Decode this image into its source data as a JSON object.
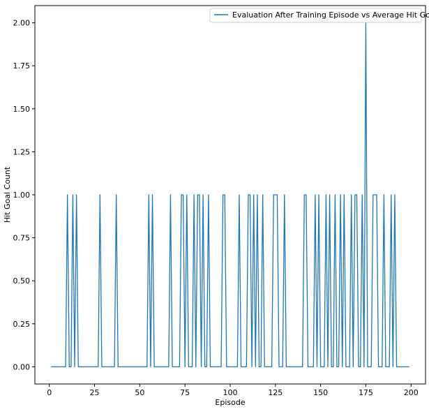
{
  "chart_data": {
    "type": "line",
    "xlabel": "Episode",
    "ylabel": "Hit Goal Count",
    "xlim": [
      -8,
      208
    ],
    "ylim": [
      -0.1,
      2.1
    ],
    "x_ticks": [
      0,
      25,
      50,
      75,
      100,
      125,
      150,
      175,
      200
    ],
    "x_tick_labels": [
      "0",
      "25",
      "50",
      "75",
      "100",
      "125",
      "150",
      "175",
      "200"
    ],
    "y_ticks": [
      0.0,
      0.25,
      0.5,
      0.75,
      1.0,
      1.25,
      1.5,
      1.75,
      2.0
    ],
    "y_tick_labels": [
      "0.00",
      "0.25",
      "0.50",
      "0.75",
      "1.00",
      "1.25",
      "1.50",
      "1.75",
      "2.00"
    ],
    "grid": false,
    "legend_position": "top-right",
    "series": [
      {
        "name": "Evaluation After Training Episode vs Average Hit Goal",
        "color": "#1f77b4",
        "x": [
          1,
          2,
          3,
          4,
          5,
          6,
          7,
          8,
          9,
          10,
          11,
          12,
          13,
          14,
          15,
          16,
          17,
          18,
          19,
          20,
          21,
          22,
          23,
          24,
          25,
          26,
          27,
          28,
          29,
          30,
          31,
          32,
          33,
          34,
          35,
          36,
          37,
          38,
          39,
          40,
          41,
          42,
          43,
          44,
          45,
          46,
          47,
          48,
          49,
          50,
          51,
          52,
          53,
          54,
          55,
          56,
          57,
          58,
          59,
          60,
          61,
          62,
          63,
          64,
          65,
          66,
          67,
          68,
          69,
          70,
          71,
          72,
          73,
          74,
          75,
          76,
          77,
          78,
          79,
          80,
          81,
          82,
          83,
          84,
          85,
          86,
          87,
          88,
          89,
          90,
          91,
          92,
          93,
          94,
          95,
          96,
          97,
          98,
          99,
          100,
          101,
          102,
          103,
          104,
          105,
          106,
          107,
          108,
          109,
          110,
          111,
          112,
          113,
          114,
          115,
          116,
          117,
          118,
          119,
          120,
          121,
          122,
          123,
          124,
          125,
          126,
          127,
          128,
          129,
          130,
          131,
          132,
          133,
          134,
          135,
          136,
          137,
          138,
          139,
          140,
          141,
          142,
          143,
          144,
          145,
          146,
          147,
          148,
          149,
          150,
          151,
          152,
          153,
          154,
          155,
          156,
          157,
          158,
          159,
          160,
          161,
          162,
          163,
          164,
          165,
          166,
          167,
          168,
          169,
          170,
          171,
          172,
          173,
          174,
          175,
          176,
          177,
          178,
          179,
          180,
          181,
          182,
          183,
          184,
          185,
          186,
          187,
          188,
          189,
          190,
          191,
          192,
          193,
          194,
          195,
          196,
          197,
          198,
          199
        ],
        "y": [
          0,
          0,
          0,
          0,
          0,
          0,
          0,
          0,
          0,
          1,
          0,
          0,
          1,
          0,
          1,
          0,
          0,
          0,
          0,
          0,
          0,
          0,
          0,
          0,
          0,
          0,
          0,
          1,
          0,
          0,
          0,
          0,
          0,
          0,
          0,
          0,
          1,
          0,
          0,
          0,
          0,
          0,
          0,
          0,
          0,
          0,
          0,
          0,
          0,
          0,
          0,
          0,
          0,
          0,
          1,
          0,
          1,
          0,
          0,
          0,
          0,
          0,
          0,
          0,
          0,
          0,
          1,
          0,
          0,
          0,
          0,
          0,
          1,
          1,
          0,
          1,
          0,
          0,
          0,
          1,
          0,
          1,
          1,
          0,
          1,
          0,
          0,
          1,
          0,
          0,
          0,
          0,
          0,
          0,
          0,
          1,
          1,
          0,
          0,
          0,
          0,
          0,
          0,
          0,
          1,
          0,
          0,
          0,
          0,
          1,
          1,
          0,
          1,
          0,
          1,
          0,
          0,
          1,
          0,
          0,
          0,
          0,
          0,
          1,
          1,
          1,
          0,
          0,
          0,
          1,
          0,
          0,
          0,
          0,
          0,
          0,
          0,
          0,
          0,
          0,
          1,
          1,
          0,
          0,
          0,
          0,
          1,
          0,
          1,
          0,
          0,
          0,
          1,
          0,
          1,
          0,
          0,
          1,
          0,
          0,
          1,
          0,
          1,
          0,
          0,
          0,
          1,
          0,
          1,
          1,
          0,
          0,
          1,
          0,
          2,
          0,
          0,
          0,
          1,
          1,
          1,
          0,
          0,
          0,
          1,
          0,
          0,
          0,
          1,
          0,
          1,
          0,
          0,
          0,
          0,
          0,
          0,
          0,
          0
        ]
      }
    ]
  }
}
